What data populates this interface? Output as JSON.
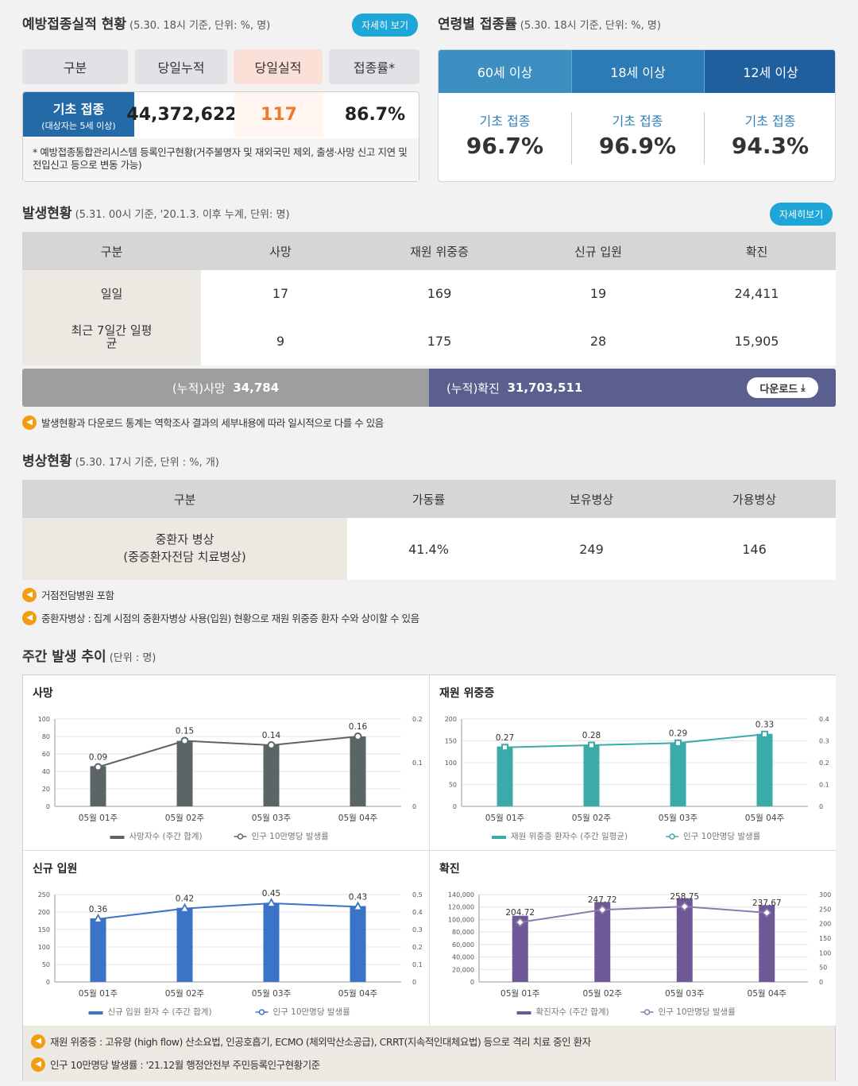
{
  "vaccine": {
    "title": "예방접종실적 현황",
    "subtitle": "(5.30. 18시 기준, 단위: %, 명)",
    "detail_btn": "자세히 보기",
    "headers": [
      "구분",
      "당일누적",
      "당일실적",
      "접종률*"
    ],
    "row_label": "기초 접종",
    "row_sublabel": "(대상자는 5세 이상)",
    "cumulative": "44,372,622",
    "today": "117",
    "rate": "86.7%",
    "footnote": "* 예방접종통합관리시스템 등록인구현황(거주불명자 및 재외국민 제외, 출생·사망 신고 지연 및 전입신고 등으로 변동 가능)"
  },
  "age": {
    "title": "연령별 접종률",
    "subtitle": "(5.30. 18시 기준, 단위: %, 명)",
    "groups": [
      {
        "label": "60세 이상",
        "kind": "기초 접종",
        "value": "96.7%"
      },
      {
        "label": "18세 이상",
        "kind": "기초 접종",
        "value": "96.9%"
      },
      {
        "label": "12세 이상",
        "kind": "기초 접종",
        "value": "94.3%"
      }
    ]
  },
  "occurrence": {
    "title": "발생현황",
    "subtitle": "(5.31. 00시 기준, '20.1.3. 이후 누계, 단위: 명)",
    "detail_btn": "자세히보기",
    "headers": [
      "구분",
      "사망",
      "재원 위중증",
      "신규 입원",
      "확진"
    ],
    "rows": [
      {
        "label": "일일",
        "values": [
          "17",
          "169",
          "19",
          "24,411"
        ]
      },
      {
        "label": "최근 7일간 일평균",
        "values": [
          "9",
          "175",
          "28",
          "15,905"
        ]
      }
    ],
    "cum_death_label": "(누적)사망",
    "cum_death": "34,784",
    "cum_conf_label": "(누적)확진",
    "cum_conf": "31,703,511",
    "download": "다운로드",
    "note": "발생현황과 다운로드 통계는 역학조사 결과의 세부내용에 따라 일시적으로 다를 수 있음"
  },
  "beds": {
    "title": "병상현황",
    "subtitle": "(5.30. 17시 기준, 단위 : %, 개)",
    "headers": [
      "구분",
      "가동률",
      "보유병상",
      "가용병상"
    ],
    "row_label1": "중환자 병상",
    "row_label2": "(중증환자전담 치료병상)",
    "values": [
      "41.4%",
      "249",
      "146"
    ],
    "notes": [
      "거점전담병원 포함",
      "중환자병상 : 집계 시점의 중환자병상 사용(입원) 현황으로 재원 위중증 환자 수와 상이할 수 있음"
    ]
  },
  "weekly": {
    "title": "주간 발생 추이",
    "subtitle": "(단위 : 명)",
    "notes": [
      "재원 위중증 : 고유량 (high flow) 산소요법, 인공호흡기, ECMO (체외막산소공급), CRRT(지속적인대체요법) 등으로 격리 치료 중인 환자",
      "인구 10만명당 발생률 : '21.12월 행정안전부 주민등록인구현황기준"
    ]
  },
  "chart_data": [
    {
      "type": "bar",
      "title": "사망",
      "categories": [
        "05월 01주",
        "05월 02주",
        "05월 03주",
        "05월 04주"
      ],
      "series": [
        {
          "name": "사망자수 (주간 합계)",
          "values": [
            46,
            75,
            70,
            80
          ]
        },
        {
          "name": "인구 10만명당 발생률",
          "values": [
            0.09,
            0.15,
            0.14,
            0.16
          ]
        }
      ],
      "bar_color": "#5b6566",
      "line_color": "#5b6566",
      "marker": "circle",
      "ylim": [
        0,
        100
      ],
      "y2lim": [
        0,
        0.2
      ],
      "yticks": [
        "0",
        "20",
        "40",
        "60",
        "80",
        "100"
      ],
      "y2ticks": [
        "0",
        "0.1",
        "0.2"
      ]
    },
    {
      "type": "bar",
      "title": "재원 위중증",
      "categories": [
        "05월 01주",
        "05월 02주",
        "05월 03주",
        "05월 04주"
      ],
      "series": [
        {
          "name": "재원 위중증 환자수 (주간 일평균)",
          "values": [
            137,
            141,
            145,
            166
          ]
        },
        {
          "name": "인구 10만명당 발생률",
          "values": [
            0.27,
            0.28,
            0.29,
            0.33
          ]
        }
      ],
      "bar_color": "#3aaba8",
      "line_color": "#3aaba8",
      "marker": "square",
      "ylim": [
        0,
        200
      ],
      "y2lim": [
        0,
        0.4
      ],
      "yticks": [
        "0",
        "50",
        "100",
        "150",
        "200"
      ],
      "y2ticks": [
        "0",
        "0.1",
        "0.2",
        "0.3",
        "0.4"
      ]
    },
    {
      "type": "bar",
      "title": "신규 입원",
      "categories": [
        "05월 01주",
        "05월 02주",
        "05월 03주",
        "05월 04주"
      ],
      "series": [
        {
          "name": "신규 입원 환자 수 (주간 합계)",
          "values": [
            182,
            212,
            226,
            217
          ]
        },
        {
          "name": "인구 10만명당 발생률",
          "values": [
            0.36,
            0.42,
            0.45,
            0.43
          ]
        }
      ],
      "bar_color": "#3b73c6",
      "line_color": "#3b73c6",
      "marker": "triangle",
      "ylim": [
        0,
        250
      ],
      "y2lim": [
        0,
        0.5
      ],
      "yticks": [
        "0",
        "50",
        "100",
        "150",
        "200",
        "250"
      ],
      "y2ticks": [
        "0",
        "0.1",
        "0.2",
        "0.3",
        "0.4",
        "0.5"
      ]
    },
    {
      "type": "bar",
      "title": "확진",
      "categories": [
        "05월 01주",
        "05월 02주",
        "05월 03주",
        "05월 04주"
      ],
      "series": [
        {
          "name": "확진자수 (주간 합계)",
          "values": [
            106000,
            128000,
            134000,
            123000
          ]
        },
        {
          "name": "인구 10만명당 발생률",
          "values": [
            204.72,
            247.72,
            258.75,
            237.67
          ]
        }
      ],
      "bar_color": "#6e5996",
      "line_color": "#8a78b0",
      "marker": "diamond",
      "ylim": [
        0,
        140000
      ],
      "y2lim": [
        0,
        300
      ],
      "yticks": [
        "0",
        "20,000",
        "40,000",
        "60,000",
        "80,000",
        "100,000",
        "120,000",
        "140,000"
      ],
      "y2ticks": [
        "0",
        "50",
        "100",
        "150",
        "200",
        "250",
        "300"
      ]
    }
  ]
}
